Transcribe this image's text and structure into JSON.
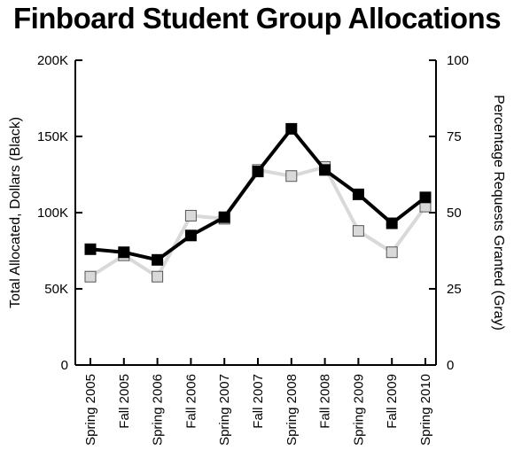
{
  "chart_data": {
    "type": "line",
    "title": "Finboard Student Group Allocations",
    "categories": [
      "Spring 2005",
      "Fall 2005",
      "Spring 2006",
      "Fall 2006",
      "Spring 2007",
      "Fall 2007",
      "Spring 2008",
      "Fall 2008",
      "Spring 2009",
      "Fall 2009",
      "Spring 2010"
    ],
    "y_left": {
      "label": "Total Allocated, Dollars (Black)",
      "range": [
        0,
        200000
      ],
      "ticks": [
        0,
        50000,
        100000,
        150000,
        200000
      ],
      "tick_labels": [
        "0",
        "50K",
        "100K",
        "150K",
        "200K"
      ]
    },
    "y_right": {
      "label": "Percentage Requests Granted (Gray)",
      "range": [
        0,
        100
      ],
      "ticks": [
        0,
        25,
        50,
        75,
        100
      ],
      "tick_labels": [
        "0",
        "25",
        "50",
        "75",
        "100"
      ]
    },
    "series": [
      {
        "axis": "left",
        "color": "#000000",
        "marker": "filled-square",
        "values": [
          76000,
          74000,
          69000,
          85000,
          97000,
          127000,
          155000,
          128000,
          112000,
          93000,
          110000
        ]
      },
      {
        "axis": "right",
        "color": "#d9d9d9",
        "marker": "hollow-square",
        "values": [
          29,
          36,
          29,
          49,
          48,
          64,
          62,
          65,
          44,
          37,
          52
        ]
      }
    ],
    "grid": false,
    "legend": "none"
  }
}
